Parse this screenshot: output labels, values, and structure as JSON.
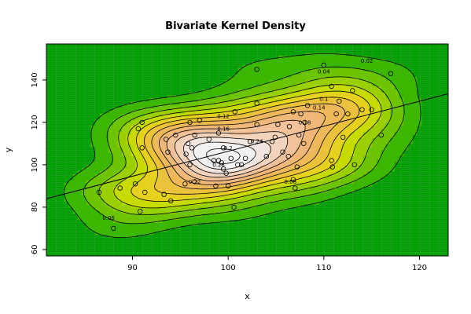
{
  "chart_data": {
    "type": "scatter",
    "subtype": "bivariate-kernel-density-contour",
    "title": "Bivariate Kernel Density",
    "xlabel": "x",
    "ylabel": "y",
    "xlim": [
      81,
      123
    ],
    "ylim": [
      57,
      157
    ],
    "x_ticks": [
      90,
      100,
      110,
      120
    ],
    "y_ticks": [
      60,
      80,
      100,
      120,
      140
    ],
    "grid": true,
    "background": "#00a000",
    "colormap": [
      "#00a600",
      "#3cb700",
      "#6dc400",
      "#9ad000",
      "#c7db00",
      "#e6d21e",
      "#ebc23c",
      "#eeb95a",
      "#f0b878",
      "#f2c29a",
      "#f2d3bc",
      "#f2e6e0",
      "#f2f2f2"
    ],
    "contour_levels": [
      0.02,
      0.04,
      0.06,
      0.08,
      0.1,
      0.12,
      0.14,
      0.16,
      0.18,
      0.2,
      0.22,
      0.24,
      0.26
    ],
    "contour_labels": [
      {
        "x": 114.5,
        "y": 149,
        "text": "0.02"
      },
      {
        "x": 110,
        "y": 144,
        "text": "0.04"
      },
      {
        "x": 87.5,
        "y": 75,
        "text": "0.06"
      },
      {
        "x": 110,
        "y": 131,
        "text": "0.1"
      },
      {
        "x": 109.5,
        "y": 127,
        "text": "0.14"
      },
      {
        "x": 108,
        "y": 120,
        "text": "0.18"
      },
      {
        "x": 99.5,
        "y": 123,
        "text": "0.12"
      },
      {
        "x": 99.5,
        "y": 117,
        "text": "0.16"
      },
      {
        "x": 100,
        "y": 108,
        "text": "0.2"
      },
      {
        "x": 103,
        "y": 111,
        "text": "0.24"
      },
      {
        "x": 99,
        "y": 100,
        "text": "0.26"
      },
      {
        "x": 96.5,
        "y": 92,
        "text": "0.22"
      },
      {
        "x": 106.5,
        "y": 92,
        "text": "0.08"
      }
    ],
    "regression_line": {
      "x": [
        81,
        123
      ],
      "y": [
        84,
        133.5
      ]
    },
    "points": [
      {
        "x": 86.5,
        "y": 87
      },
      {
        "x": 88,
        "y": 70
      },
      {
        "x": 88.7,
        "y": 89
      },
      {
        "x": 90.3,
        "y": 91
      },
      {
        "x": 90.6,
        "y": 117
      },
      {
        "x": 90.8,
        "y": 78
      },
      {
        "x": 91,
        "y": 120
      },
      {
        "x": 91,
        "y": 108
      },
      {
        "x": 91.3,
        "y": 87
      },
      {
        "x": 93.3,
        "y": 86
      },
      {
        "x": 93.5,
        "y": 112
      },
      {
        "x": 93.7,
        "y": 106
      },
      {
        "x": 94,
        "y": 83
      },
      {
        "x": 94.5,
        "y": 114
      },
      {
        "x": 95.5,
        "y": 91
      },
      {
        "x": 95.6,
        "y": 105
      },
      {
        "x": 95.8,
        "y": 110
      },
      {
        "x": 96,
        "y": 100
      },
      {
        "x": 96,
        "y": 120
      },
      {
        "x": 96.2,
        "y": 108
      },
      {
        "x": 96.5,
        "y": 114
      },
      {
        "x": 96.5,
        "y": 92
      },
      {
        "x": 97,
        "y": 121
      },
      {
        "x": 98,
        "y": 112
      },
      {
        "x": 98.5,
        "y": 102
      },
      {
        "x": 98.7,
        "y": 90
      },
      {
        "x": 99,
        "y": 115
      },
      {
        "x": 99,
        "y": 102
      },
      {
        "x": 99.3,
        "y": 101
      },
      {
        "x": 99.5,
        "y": 108
      },
      {
        "x": 99.5,
        "y": 98
      },
      {
        "x": 99.8,
        "y": 96
      },
      {
        "x": 100,
        "y": 90
      },
      {
        "x": 100.3,
        "y": 103
      },
      {
        "x": 100.6,
        "y": 80
      },
      {
        "x": 100.7,
        "y": 125
      },
      {
        "x": 101,
        "y": 100
      },
      {
        "x": 101.4,
        "y": 100
      },
      {
        "x": 101.8,
        "y": 103
      },
      {
        "x": 102.3,
        "y": 111
      },
      {
        "x": 103,
        "y": 145
      },
      {
        "x": 103,
        "y": 129
      },
      {
        "x": 103,
        "y": 119
      },
      {
        "x": 104,
        "y": 104
      },
      {
        "x": 104.6,
        "y": 111
      },
      {
        "x": 104.9,
        "y": 113
      },
      {
        "x": 105.2,
        "y": 119
      },
      {
        "x": 105.7,
        "y": 106
      },
      {
        "x": 106.3,
        "y": 104
      },
      {
        "x": 106.4,
        "y": 118
      },
      {
        "x": 106.8,
        "y": 93
      },
      {
        "x": 106.8,
        "y": 125
      },
      {
        "x": 107,
        "y": 89
      },
      {
        "x": 107.2,
        "y": 99
      },
      {
        "x": 107.4,
        "y": 114
      },
      {
        "x": 107.6,
        "y": 124
      },
      {
        "x": 107.9,
        "y": 110
      },
      {
        "x": 108,
        "y": 120
      },
      {
        "x": 108.3,
        "y": 128
      },
      {
        "x": 110,
        "y": 147
      },
      {
        "x": 110.8,
        "y": 137
      },
      {
        "x": 110.8,
        "y": 102
      },
      {
        "x": 110.9,
        "y": 99
      },
      {
        "x": 111.3,
        "y": 124
      },
      {
        "x": 111.6,
        "y": 130
      },
      {
        "x": 112,
        "y": 113
      },
      {
        "x": 112.5,
        "y": 124
      },
      {
        "x": 113,
        "y": 135
      },
      {
        "x": 113.2,
        "y": 100
      },
      {
        "x": 114,
        "y": 126
      },
      {
        "x": 115,
        "y": 126
      },
      {
        "x": 116,
        "y": 114
      },
      {
        "x": 117,
        "y": 143
      }
    ]
  }
}
